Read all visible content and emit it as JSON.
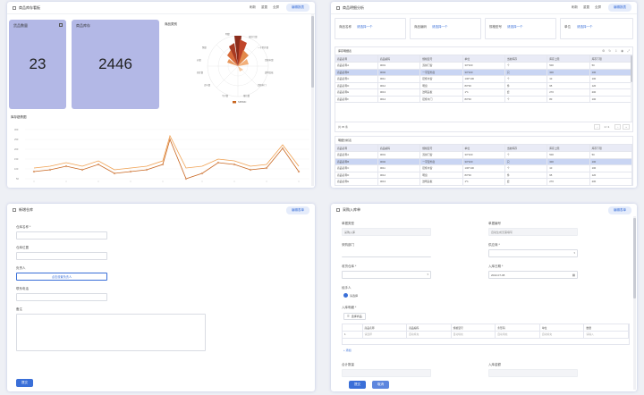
{
  "panel_top_left": {
    "title": "商品库存看板",
    "tools": [
      "刷新",
      "重置",
      "全屏"
    ],
    "edit_label": "编辑报表",
    "cards": [
      {
        "label": "货品数量",
        "value": "23"
      },
      {
        "label": "商品库存",
        "value": "2446"
      }
    ],
    "rose_title": "商品类别",
    "rose_legend": "SPDMC",
    "line_title": "库存趋势图",
    "colors": {
      "card": "#b3b8e6",
      "line1": "#f0a050",
      "line2": "#c8651e",
      "accent": "#3a6fd8"
    }
  },
  "panel_top_right": {
    "title": "商品明细分析",
    "tools": [
      "刷新",
      "重置",
      "全屏"
    ],
    "edit_label": "编辑报表",
    "filters": [
      {
        "label": "商品名称",
        "value": "请选择一个"
      },
      {
        "label": "商品编码",
        "value": "请选择一个"
      },
      {
        "label": "规格型号",
        "value": "请选择一个"
      },
      {
        "label": "单位",
        "value": "请选择一个"
      }
    ],
    "table1": {
      "title": "库存明细表",
      "headers": [
        "商品名称",
        "商品编码",
        "规格型号",
        "单位",
        "当前库存",
        "库存上限",
        "库存下限"
      ],
      "rows": [
        [
          "商品名称A",
          "0001",
          "双拼门窗",
          "30*100",
          "个",
          "500",
          "50"
        ],
        [
          "商品名称B",
          "0002",
          "一字型外窗",
          "30*100",
          "只",
          "300",
          "100"
        ],
        [
          "商品名称C",
          "0011",
          "铝框木窗",
          "100*100",
          "个",
          "10",
          "100"
        ],
        [
          "商品名称D",
          "0012",
          "明窗",
          "80*30",
          "件",
          "95",
          "120"
        ],
        [
          "商品名称E",
          "0013",
          "透明盖板",
          "1*1",
          "套",
          "270",
          "200"
        ],
        [
          "商品名称F",
          "0014",
          "铝框木门",
          "80*40",
          "个",
          "80",
          "100"
        ]
      ],
      "footer_count": "共 35 条",
      "pager": "1 / 1"
    },
    "table2": {
      "title": "明细分析表",
      "headers": [
        "商品名称",
        "商品编码",
        "规格型号",
        "单位",
        "当前库存",
        "库存上限",
        "库存下限"
      ],
      "rows": [
        [
          "商品名称A",
          "0001",
          "双拼门窗",
          "30*100",
          "个",
          "500",
          "50"
        ],
        [
          "商品名称B",
          "0002",
          "一字型外窗",
          "30*100",
          "只",
          "300",
          "100"
        ],
        [
          "商品名称C",
          "0011",
          "铝框木窗",
          "100*100",
          "个",
          "10",
          "100"
        ],
        [
          "商品名称D",
          "0012",
          "明窗",
          "80*30",
          "件",
          "95",
          "120"
        ],
        [
          "商品名称E",
          "0013",
          "透明盖板",
          "1*1",
          "套",
          "270",
          "200"
        ]
      ]
    }
  },
  "panel_bottom_left": {
    "title": "新增仓库",
    "edit_label": "编辑表单",
    "fields": {
      "name": "仓库名称 *",
      "location": "仓库位置",
      "manager": "负责人",
      "manager_btn": "点击设置负责人",
      "phone": "联系电话",
      "remark": "备注"
    },
    "submit": "提交"
  },
  "panel_bottom_right": {
    "title": "采购入库单",
    "edit_label": "编辑表单",
    "fields": {
      "doc_type": "单据类型",
      "doc_type_value": "采购入库",
      "doc_no": "单据编号",
      "doc_no_value": "自动生成无需填写",
      "dept": "采购部门",
      "supplier": "供应商 *",
      "warehouse": "收货仓库 *",
      "in_date": "入库日期 *",
      "in_date_value": "2022-07-08",
      "handler": "经手人",
      "handler_value": "请选择",
      "detail": "入库明细 *",
      "add_btn": "选择商品",
      "add_row": "+ 添加",
      "total_qty": "合计数量",
      "total_amt": "入库金额"
    },
    "grid_headers": [
      "",
      "商品名称",
      "商品编码",
      "规格型号",
      "条形码",
      "单位",
      "数量"
    ],
    "grid_row": [
      "1",
      "请选择",
      "自动填充",
      "自动填充",
      "自动填充",
      "自动填充",
      "请输入"
    ],
    "submit": "提交",
    "cancel": "取消"
  }
}
